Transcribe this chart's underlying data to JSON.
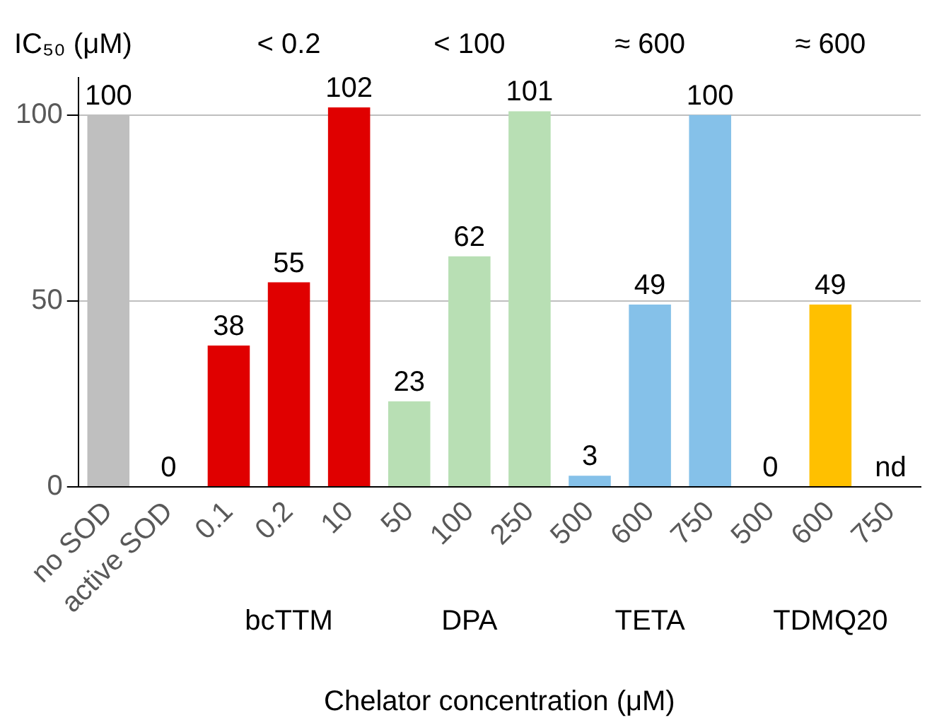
{
  "chart_data": {
    "type": "bar",
    "xlabel": "Chelator concentration (μM)",
    "categories": [
      "no SOD",
      "active SOD",
      "0.1",
      "0.2",
      "10",
      "50",
      "100",
      "250",
      "500",
      "600",
      "750",
      "500",
      "600",
      "750"
    ],
    "values": [
      100,
      0,
      38,
      55,
      102,
      23,
      62,
      101,
      3,
      49,
      100,
      0,
      49,
      null
    ],
    "value_labels": [
      "100",
      "0",
      "38",
      "55",
      "102",
      "23",
      "62",
      "101",
      "3",
      "49",
      "100",
      "0",
      "49",
      "nd"
    ],
    "colors": [
      "#bfbfbf",
      "#bfbfbf",
      "#e00000",
      "#e00000",
      "#e00000",
      "#b8dfb4",
      "#b8dfb4",
      "#b8dfb4",
      "#85c1e9",
      "#85c1e9",
      "#85c1e9",
      "#ffc000",
      "#ffc000",
      "#ffc000"
    ],
    "ylim": [
      0,
      110
    ],
    "yticks": [
      0,
      50,
      100
    ],
    "grid": "y",
    "legend": false,
    "annotations": [
      "IC₅₀ (μM)",
      "< 0.2",
      "< 100",
      "≈ 600",
      "≈ 600",
      "bcTTM",
      "DPA",
      "TETA",
      "TDMQ20"
    ]
  }
}
